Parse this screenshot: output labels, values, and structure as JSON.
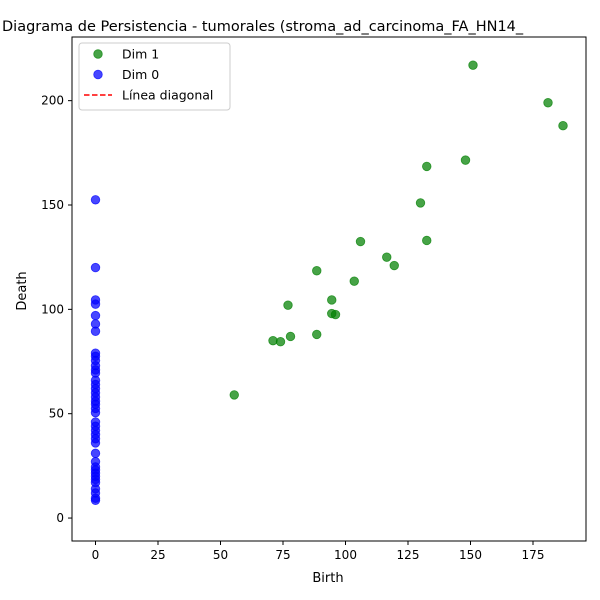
{
  "chart_data": {
    "type": "scatter",
    "title": "Diagrama de Persistencia - tumorales (stroma_ad_carcinoma_FA_HN14_",
    "xlabel": "Birth",
    "ylabel": "Death",
    "xlim": [
      -9.4,
      196.2
    ],
    "ylim": [
      -11,
      230.5
    ],
    "xticks": [
      0,
      25,
      50,
      75,
      100,
      125,
      150,
      175
    ],
    "yticks": [
      0,
      50,
      100,
      150,
      200
    ],
    "legend": {
      "placement": "top-left"
    },
    "grid": false,
    "series": [
      {
        "name": "Dim 1",
        "color": "#008000",
        "marker": "circle",
        "points": [
          [
            151,
            217
          ],
          [
            181,
            199
          ],
          [
            187,
            188
          ],
          [
            148,
            171.5
          ],
          [
            132.5,
            168.5
          ],
          [
            130,
            151
          ],
          [
            132.5,
            133
          ],
          [
            106,
            132.5
          ],
          [
            116.5,
            125
          ],
          [
            119.5,
            121
          ],
          [
            88.5,
            118.5
          ],
          [
            103.5,
            113.5
          ],
          [
            94.5,
            104.5
          ],
          [
            77,
            102
          ],
          [
            94.5,
            98
          ],
          [
            96,
            97.5
          ],
          [
            88.5,
            88
          ],
          [
            78,
            87
          ],
          [
            71,
            85
          ],
          [
            74,
            84.5
          ],
          [
            55.5,
            59
          ]
        ]
      },
      {
        "name": "Dim 0",
        "color": "#0000ff",
        "marker": "circle",
        "points": [
          [
            0,
            152.5
          ],
          [
            0,
            120
          ],
          [
            0,
            104.5
          ],
          [
            0,
            102.5
          ],
          [
            0,
            97
          ],
          [
            0,
            93
          ],
          [
            0,
            89.5
          ],
          [
            0,
            79
          ],
          [
            0,
            77.5
          ],
          [
            0,
            75.5
          ],
          [
            0,
            73
          ],
          [
            0,
            71
          ],
          [
            0,
            69.5
          ],
          [
            0,
            66
          ],
          [
            0,
            64
          ],
          [
            0,
            62
          ],
          [
            0,
            60
          ],
          [
            0,
            58
          ],
          [
            0,
            56
          ],
          [
            0,
            54.5
          ],
          [
            0,
            52.5
          ],
          [
            0,
            50.5
          ],
          [
            0,
            46
          ],
          [
            0,
            44
          ],
          [
            0,
            42
          ],
          [
            0,
            40
          ],
          [
            0,
            38
          ],
          [
            0,
            36
          ],
          [
            0,
            31
          ],
          [
            0,
            27
          ],
          [
            0,
            24.5
          ],
          [
            0,
            23
          ],
          [
            0,
            21.5
          ],
          [
            0,
            20
          ],
          [
            0,
            18.5
          ],
          [
            0,
            17
          ],
          [
            0,
            14
          ],
          [
            0,
            12
          ],
          [
            0,
            9.5
          ],
          [
            0,
            8.5
          ]
        ]
      },
      {
        "name": "Línea diagonal",
        "color": "#ff0000",
        "linestyle": "dashed",
        "points": []
      }
    ]
  }
}
